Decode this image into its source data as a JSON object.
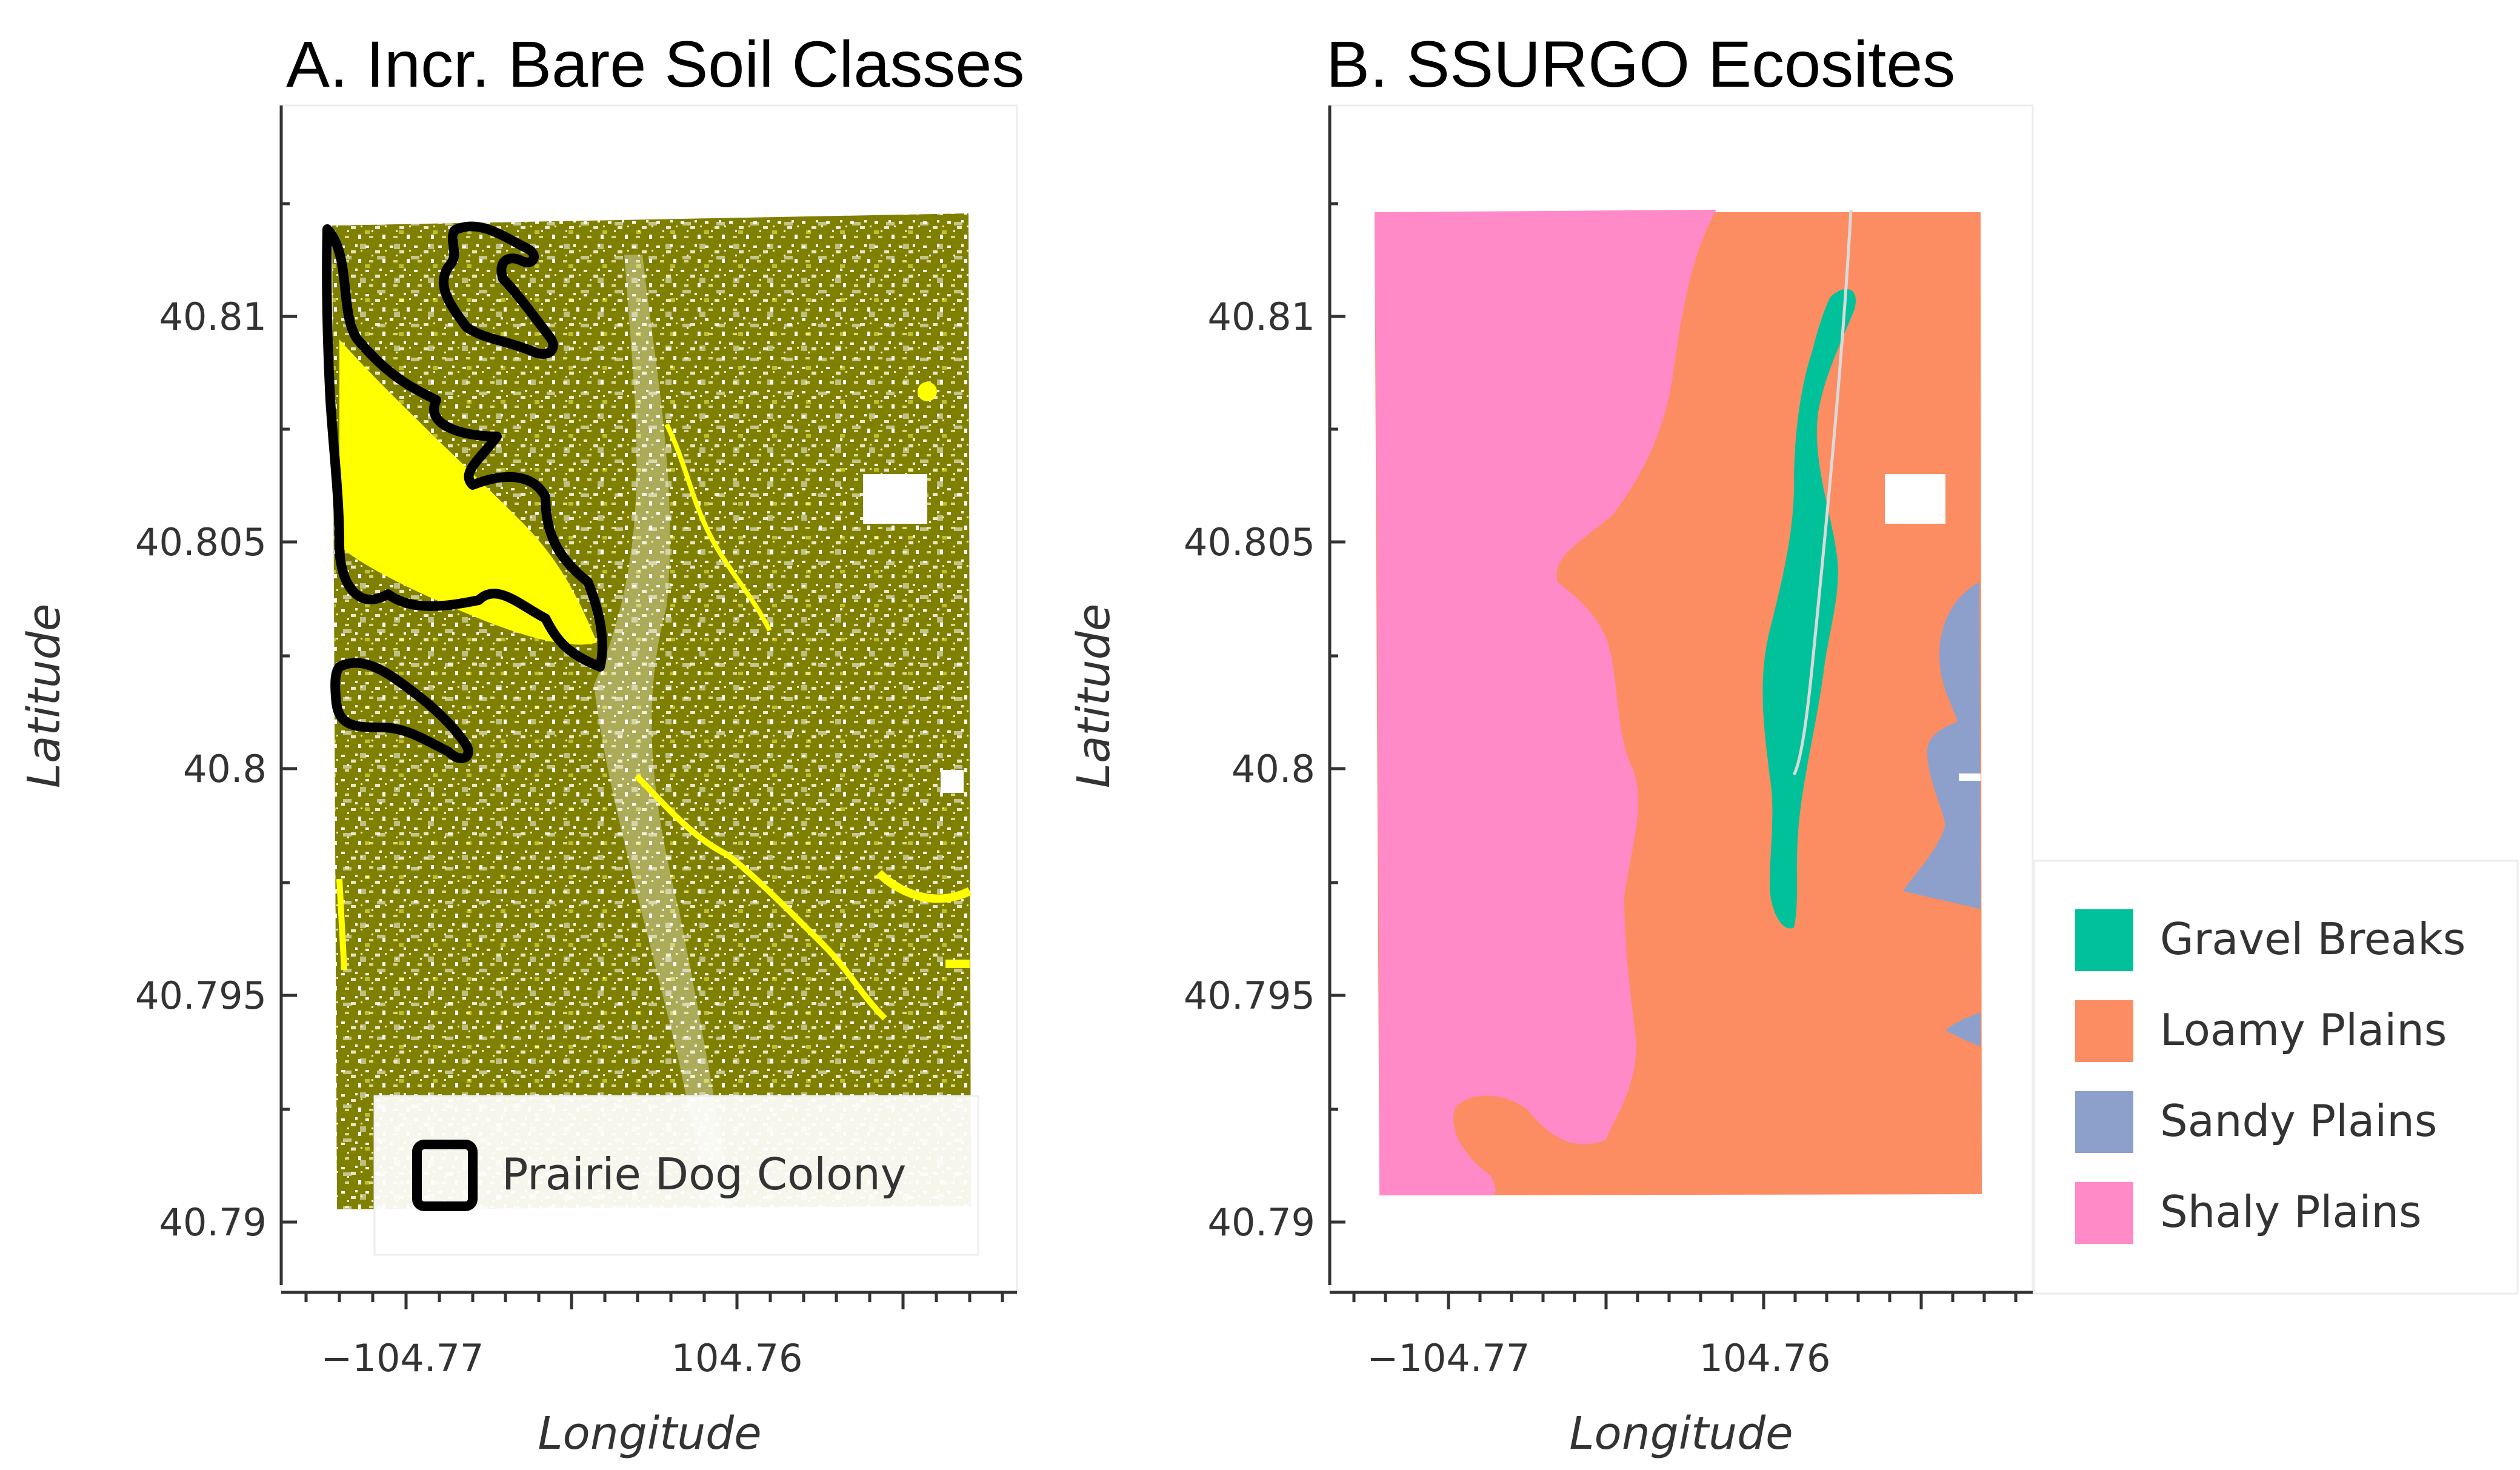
{
  "panels": [
    {
      "title": "A. Incr. Bare Soil Classes",
      "xlabel": "Longitude",
      "ylabel": "Latitude",
      "x_ticks": [
        "−104.77",
        "104.76"
      ],
      "y_ticks": [
        "40.81",
        "40.805",
        "40.8",
        "40.795",
        "40.79"
      ],
      "legend": [
        {
          "label": "Prairie Dog Colony"
        }
      ]
    },
    {
      "title": "B. SSURGO Ecosites",
      "xlabel": "Longitude",
      "ylabel": "Latitude",
      "x_ticks": [
        "−104.77",
        "104.76"
      ],
      "y_ticks": [
        "40.81",
        "40.805",
        "40.8",
        "40.795",
        "40.79"
      ],
      "legend": [
        {
          "label": "Gravel Breaks",
          "color": "#00c19a"
        },
        {
          "label": "Loamy Plains",
          "color": "#fc8d62"
        },
        {
          "label": "Sandy Plains",
          "color": "#8da0cb"
        },
        {
          "label": "Shaly Plains",
          "color": "#ff8ac7"
        }
      ]
    }
  ],
  "colors": {
    "vegetation": "#7f7f00",
    "bare_soil": "#ffff00",
    "colony_outline": "#000000"
  }
}
